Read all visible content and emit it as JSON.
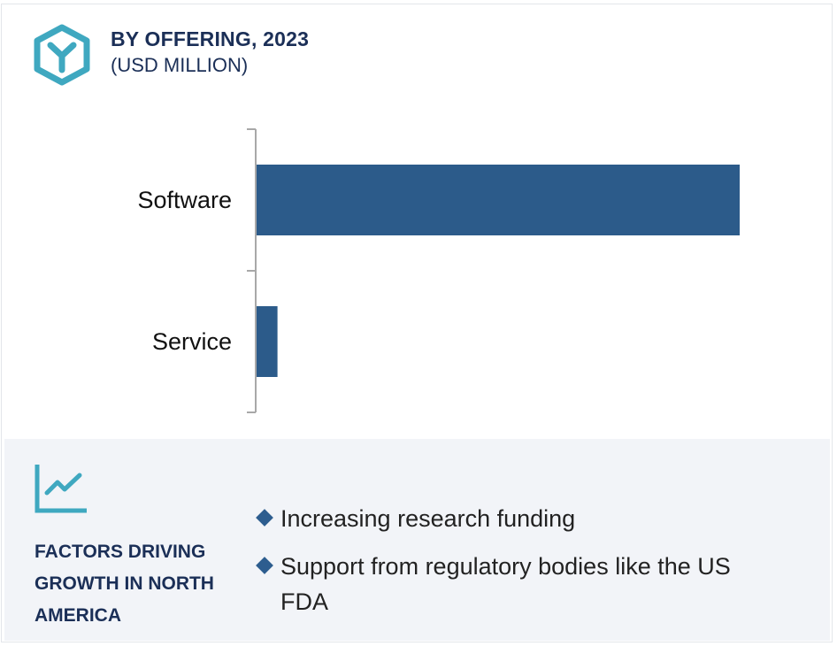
{
  "header": {
    "title": "BY OFFERING, 2023",
    "subtitle": "(USD MILLION)",
    "logo_icon": "hexagon-y-logo-icon"
  },
  "colors": {
    "bar": "#2c5b8a",
    "accent": "#3fa8c0",
    "heading": "#1b2f57",
    "panel_bg": "#f2f4f8"
  },
  "chart_data": {
    "type": "bar",
    "orientation": "horizontal",
    "categories": [
      "Software",
      "Service"
    ],
    "values": [
      100,
      4.5
    ],
    "value_unit": "relative (no axis values shown)",
    "title": "BY OFFERING, 2023",
    "subtitle": "(USD MILLION)",
    "xlabel": "",
    "ylabel": "",
    "grid": false,
    "legend": "none"
  },
  "factors": {
    "icon": "trend-line-icon",
    "title": "FACTORS DRIVING GROWTH IN NORTH AMERICA",
    "items": [
      "Increasing research funding",
      "Support from regulatory bodies like the US FDA"
    ]
  }
}
